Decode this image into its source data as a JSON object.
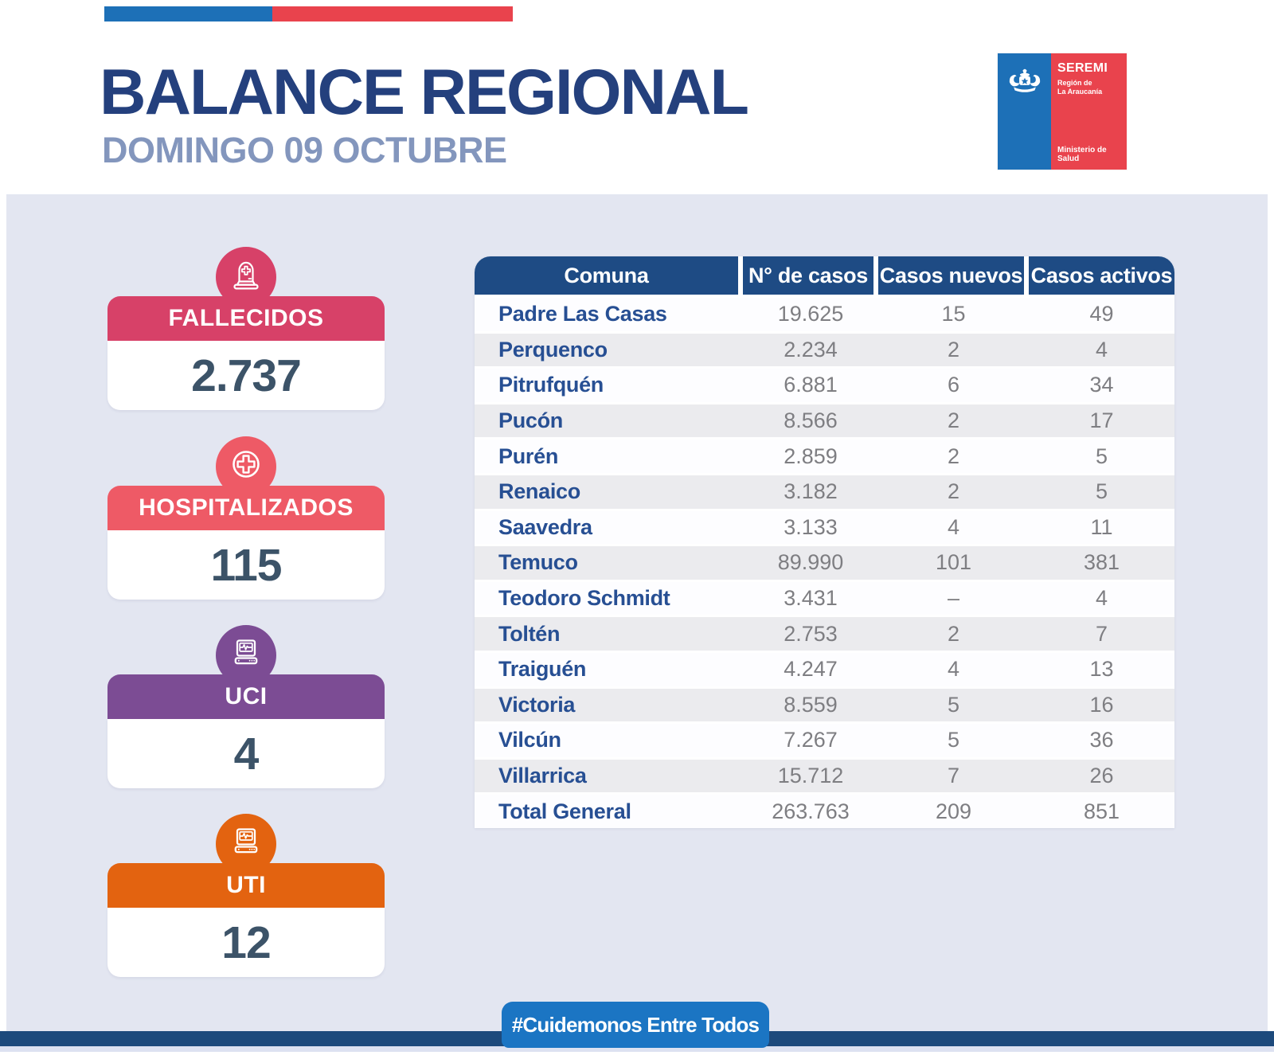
{
  "header": {
    "title": "BALANCE REGIONAL",
    "subtitle": "DOMINGO 09 OCTUBRE",
    "ribbon_colors": {
      "blue": "#1d70b7",
      "red": "#e9434d"
    },
    "logo": {
      "org": "SEREMI",
      "region_line1": "Región de",
      "region_line2": "La Araucanía",
      "ministry": "Ministerio de Salud"
    }
  },
  "stats": [
    {
      "id": "fallecidos",
      "label": "FALLECIDOS",
      "value": "2.737",
      "color": "#d74168",
      "icon": "tombstone-icon"
    },
    {
      "id": "hospitalizados",
      "label": "HOSPITALIZADOS",
      "value": "115",
      "color": "#ee5a66",
      "icon": "medical-cross-icon"
    },
    {
      "id": "uci",
      "label": "UCI",
      "value": "4",
      "color": "#7c4c94",
      "icon": "vitals-monitor-icon"
    },
    {
      "id": "uti",
      "label": "UTI",
      "value": "12",
      "color": "#e36310",
      "icon": "vitals-monitor-icon"
    }
  ],
  "table": {
    "columns": [
      "Comuna",
      "N° de casos",
      "Casos nuevos",
      "Casos activos"
    ],
    "rows": [
      {
        "comuna": "Padre Las Casas",
        "casos": "19.625",
        "nuevos": "15",
        "activos": "49"
      },
      {
        "comuna": "Perquenco",
        "casos": "2.234",
        "nuevos": "2",
        "activos": "4"
      },
      {
        "comuna": "Pitrufquén",
        "casos": "6.881",
        "nuevos": "6",
        "activos": "34"
      },
      {
        "comuna": "Pucón",
        "casos": "8.566",
        "nuevos": "2",
        "activos": "17"
      },
      {
        "comuna": "Purén",
        "casos": "2.859",
        "nuevos": "2",
        "activos": "5"
      },
      {
        "comuna": "Renaico",
        "casos": "3.182",
        "nuevos": "2",
        "activos": "5"
      },
      {
        "comuna": "Saavedra",
        "casos": "3.133",
        "nuevos": "4",
        "activos": "11"
      },
      {
        "comuna": "Temuco",
        "casos": "89.990",
        "nuevos": "101",
        "activos": "381"
      },
      {
        "comuna": "Teodoro Schmidt",
        "casos": "3.431",
        "nuevos": "–",
        "activos": "4"
      },
      {
        "comuna": "Toltén",
        "casos": "2.753",
        "nuevos": "2",
        "activos": "7"
      },
      {
        "comuna": "Traiguén",
        "casos": "4.247",
        "nuevos": "4",
        "activos": "13"
      },
      {
        "comuna": "Victoria",
        "casos": "8.559",
        "nuevos": "5",
        "activos": "16"
      },
      {
        "comuna": "Vilcún",
        "casos": "7.267",
        "nuevos": "5",
        "activos": "36"
      },
      {
        "comuna": "Villarrica",
        "casos": "15.712",
        "nuevos": "7",
        "activos": "26"
      },
      {
        "comuna": "Total General",
        "casos": "263.763",
        "nuevos": "209",
        "activos": "851",
        "total": true
      }
    ]
  },
  "footer": {
    "hashtag": "#Cuidemonos Entre Todos"
  },
  "chart_data": {
    "type": "table",
    "title": "BALANCE REGIONAL — DOMINGO 09 OCTUBRE",
    "columns": [
      "Comuna",
      "N° de casos",
      "Casos nuevos",
      "Casos activos"
    ],
    "rows": [
      [
        "Padre Las Casas",
        19625,
        15,
        49
      ],
      [
        "Perquenco",
        2234,
        2,
        4
      ],
      [
        "Pitrufquén",
        6881,
        6,
        34
      ],
      [
        "Pucón",
        8566,
        2,
        17
      ],
      [
        "Purén",
        2859,
        2,
        5
      ],
      [
        "Renaico",
        3182,
        2,
        5
      ],
      [
        "Saavedra",
        3133,
        4,
        11
      ],
      [
        "Temuco",
        89990,
        101,
        381
      ],
      [
        "Teodoro Schmidt",
        3431,
        null,
        4
      ],
      [
        "Toltén",
        2753,
        2,
        7
      ],
      [
        "Traiguén",
        4247,
        4,
        13
      ],
      [
        "Victoria",
        8559,
        5,
        16
      ],
      [
        "Vilcún",
        7267,
        5,
        36
      ],
      [
        "Villarrica",
        15712,
        7,
        26
      ],
      [
        "Total General",
        263763,
        209,
        851
      ]
    ],
    "kpis": [
      {
        "label": "FALLECIDOS",
        "value": 2737
      },
      {
        "label": "HOSPITALIZADOS",
        "value": 115
      },
      {
        "label": "UCI",
        "value": 4
      },
      {
        "label": "UTI",
        "value": 12
      }
    ]
  }
}
